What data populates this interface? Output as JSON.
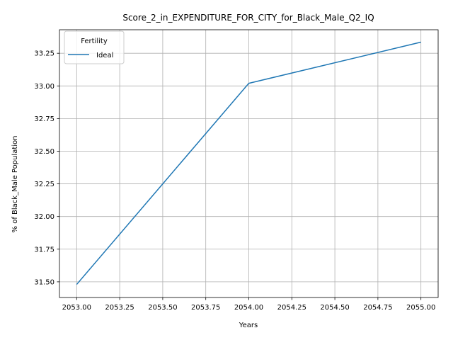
{
  "chart_data": {
    "type": "line",
    "title": "Score_2_in_EXPENDITURE_FOR_CITY_for_Black_Male_Q2_IQ",
    "xlabel": "Years",
    "ylabel": "% of Black_Male Population",
    "x": [
      2053,
      2054,
      2055
    ],
    "series": [
      {
        "name": "Ideal",
        "values": [
          31.48,
          33.02,
          33.335
        ],
        "color": "#1f77b4"
      }
    ],
    "xlim": [
      2052.9,
      2055.1
    ],
    "ylim": [
      31.38,
      33.43
    ],
    "xticks": [
      2053.0,
      2053.25,
      2053.5,
      2053.75,
      2054.0,
      2054.25,
      2054.5,
      2054.75,
      2055.0
    ],
    "xtick_labels": [
      "2053.00",
      "2053.25",
      "2053.50",
      "2053.75",
      "2054.00",
      "2054.25",
      "2054.50",
      "2054.75",
      "2055.00"
    ],
    "yticks": [
      31.5,
      31.75,
      32.0,
      32.25,
      32.5,
      32.75,
      33.0,
      33.25
    ],
    "ytick_labels": [
      "31.50",
      "31.75",
      "32.00",
      "32.25",
      "32.50",
      "32.75",
      "33.00",
      "33.25"
    ],
    "grid": true,
    "legend": {
      "title": "Fertility",
      "placement": "top-left"
    }
  }
}
